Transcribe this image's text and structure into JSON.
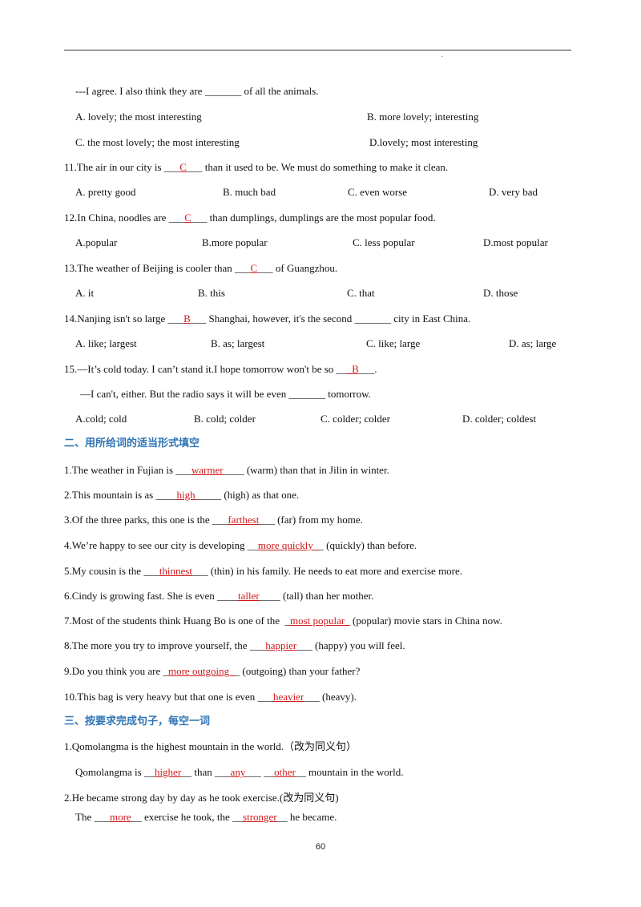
{
  "page": {
    "header_dot": ".",
    "number": "60"
  },
  "q10": {
    "stem": "---I agree. I also think they are _______ of all the animals.",
    "opts": [
      "A. lovely; the most interesting",
      "B. more lovely; interesting",
      "C. the most lovely; the most interesting",
      "D.lovely; most interesting"
    ]
  },
  "q11": {
    "pre": "11.The air in our city is ___",
    "ans": "C",
    "post": "___ than it used to be. We must do something to make it clean.",
    "opts": [
      "A. pretty good",
      "B. much bad",
      "C. even worse",
      "D. very bad"
    ]
  },
  "q12": {
    "pre": "12.In China, noodles are ___",
    "ans": "C",
    "post": "___ than dumplings, dumplings are the most popular food.",
    "opts": [
      "A.popular",
      "B.more popular",
      "C. less popular",
      "D.most popular"
    ]
  },
  "q13": {
    "pre": "13.The weather of Beijing is cooler than ___",
    "ans": "C",
    "post": "___ of Guangzhou.",
    "opts": [
      "A. it",
      "B. this",
      "C. that",
      "D. those"
    ]
  },
  "q14": {
    "pre": "14.Nanjing isn't so large ___",
    "ans": "B",
    "post": "___ Shanghai, however, it's the second _______ city in East China.",
    "opts": [
      "A. like; largest",
      "B. as; largest",
      "C. like; large",
      "D. as; large"
    ]
  },
  "q15": {
    "pre": "15.—It’s cold today. I can’t stand it.I hope tomorrow won't be so __",
    "ans": "_B",
    "post": "___.",
    "line2": "—I can't, either. But the radio says it will be even _______ tomorrow.",
    "opts": [
      "A.cold; cold",
      "B. cold; colder",
      "C. colder; colder",
      "D. colder; coldest"
    ]
  },
  "section2": {
    "title": "二、用所给词的适当形式填空",
    "items": [
      {
        "pre": "1.The weather in Fujian is ___",
        "ans": "warmer",
        "post": "____ (warm) than that in Jilin in winter."
      },
      {
        "pre": "2.This mountain is as ____",
        "ans": "high",
        "post": "_____ (high) as that one."
      },
      {
        "pre": "3.Of the three parks, this one is the ___",
        "ans": "farthest",
        "post": "___ (far) from my home."
      },
      {
        "pre": "4.We’re happy to see our city is developing __",
        "ans": "more quickly_",
        "post": "_ (quickly) than before."
      },
      {
        "pre": "5.My cousin is the ___",
        "ans": "thinnest",
        "post": "___ (thin) in his family. He needs to eat more and exercise more."
      },
      {
        "pre": "6.Cindy is growing fast. She is even ____",
        "ans": "taller",
        "post": "____ (tall) than her mother."
      },
      {
        "pre": "7.Most of the students think Huang Bo is one of the  _",
        "ans": "most popular_",
        "post": " (popular) movie stars in China now."
      },
      {
        "pre": "8.The more you try to improve yourself, the ___",
        "ans": "happier",
        "post": "___ (happy) you will feel."
      },
      {
        "pre": "9.Do you think you are _",
        "ans": "more outgoing_",
        "post": "_ (outgoing) than your father?"
      },
      {
        "pre": "10.This bag is very heavy but that one is even ___",
        "ans": "heavier",
        "post": "___ (heavy)."
      }
    ]
  },
  "section3": {
    "title": "三、按要求完成句子，每空一词",
    "s1": {
      "stem": "1.Qomolangma is the highest mountain in the world.（改为同义句）",
      "a_pre": "Qomolangma is __",
      "a1": "higher",
      "a_mid1": "__ than ___",
      "a2": "any",
      "a_mid2": "___ __",
      "a3": "other",
      "a_post": "__ mountain in the world."
    },
    "s2": {
      "stem": "2.He became strong day by day as he took exercise.(改为同义句)",
      "a_pre": "The ___",
      "a1": "more",
      "a_mid": "__ exercise he took, the __",
      "a2": "stronger",
      "a_post": "__ he became."
    }
  }
}
